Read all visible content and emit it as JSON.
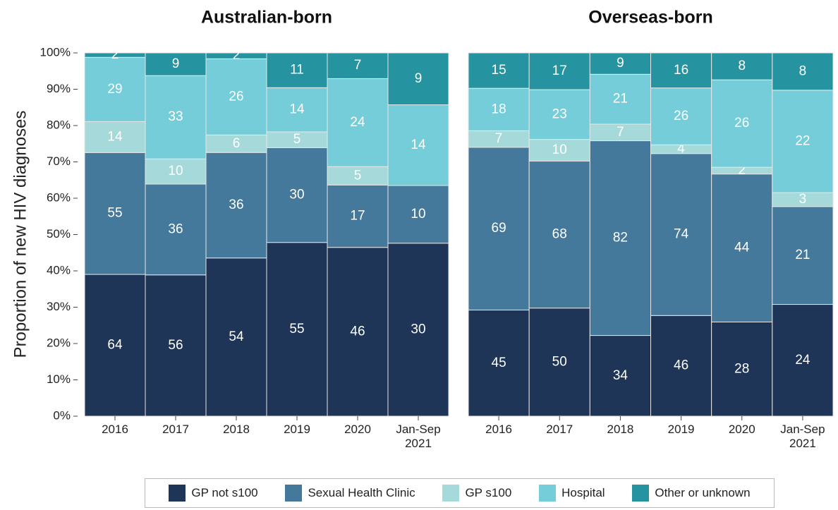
{
  "chart_data": {
    "type": "bar",
    "stacking": "percent",
    "legend": "bottom",
    "ylabel": "Proportion of new HIV diagnoses",
    "ylim": [
      0,
      100
    ],
    "yticks": [
      {
        "value": 0,
        "label": "0%"
      },
      {
        "value": 10,
        "label": "10%"
      },
      {
        "value": 20,
        "label": "20%"
      },
      {
        "value": 30,
        "label": "30%"
      },
      {
        "value": 40,
        "label": "40%"
      },
      {
        "value": 50,
        "label": "50%"
      },
      {
        "value": 60,
        "label": "60%"
      },
      {
        "value": 70,
        "label": "70%"
      },
      {
        "value": 80,
        "label": "80%"
      },
      {
        "value": 90,
        "label": "90%"
      },
      {
        "value": 100,
        "label": "100%"
      }
    ],
    "series": [
      {
        "name": "GP not s100",
        "color": "#1f3557"
      },
      {
        "name": "Sexual Health Clinic",
        "color": "#45799c"
      },
      {
        "name": "GP s100",
        "color": "#a6dada"
      },
      {
        "name": "Hospital",
        "color": "#74cdd9"
      },
      {
        "name": "Other or unknown",
        "color": "#2594a0"
      }
    ],
    "panels": [
      {
        "title": "Australian-born",
        "categories": [
          "2016",
          "2017",
          "2018",
          "2019",
          "2020",
          "Jan-Sep 2021"
        ],
        "values": [
          [
            64,
            56,
            54,
            55,
            46,
            30
          ],
          [
            55,
            36,
            36,
            30,
            17,
            10
          ],
          [
            14,
            10,
            6,
            5,
            5,
            0
          ],
          [
            29,
            33,
            26,
            14,
            24,
            14
          ],
          [
            2,
            9,
            2,
            11,
            7,
            9
          ]
        ]
      },
      {
        "title": "Overseas-born",
        "categories": [
          "2016",
          "2017",
          "2018",
          "2019",
          "2020",
          "Jan-Sep 2021"
        ],
        "values": [
          [
            45,
            50,
            34,
            46,
            28,
            24
          ],
          [
            69,
            68,
            82,
            74,
            44,
            21
          ],
          [
            7,
            10,
            7,
            4,
            2,
            3
          ],
          [
            18,
            23,
            21,
            26,
            26,
            22
          ],
          [
            15,
            17,
            9,
            16,
            8,
            8
          ]
        ]
      }
    ]
  }
}
